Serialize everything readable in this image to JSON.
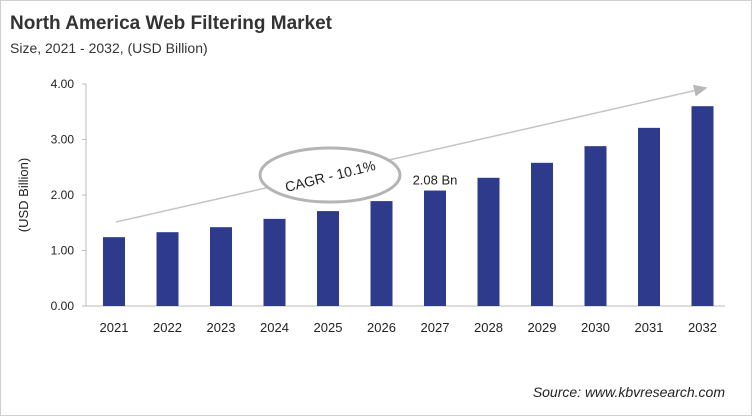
{
  "chart_data": {
    "type": "bar",
    "title": "North America Web Filtering Market",
    "subtitle": "Size, 2021 - 2032, (USD Billion)",
    "ylabel": "(USD Billion)",
    "xlabel": "",
    "categories": [
      "2021",
      "2022",
      "2023",
      "2024",
      "2025",
      "2026",
      "2027",
      "2028",
      "2029",
      "2030",
      "2031",
      "2032"
    ],
    "values": [
      1.24,
      1.33,
      1.42,
      1.57,
      1.71,
      1.89,
      2.08,
      2.31,
      2.58,
      2.88,
      3.21,
      3.6
    ],
    "ylim": [
      0,
      4
    ],
    "yticks": [
      "0.00",
      "1.00",
      "2.00",
      "3.00",
      "4.00"
    ],
    "grid": false,
    "bar_color": "#2e3a8c",
    "annotations": {
      "cagr": "CAGR - 10.1%",
      "data_label": "2.08 Bn",
      "data_label_category": "2027"
    },
    "source": "Source: www.kbvresearch.com"
  }
}
